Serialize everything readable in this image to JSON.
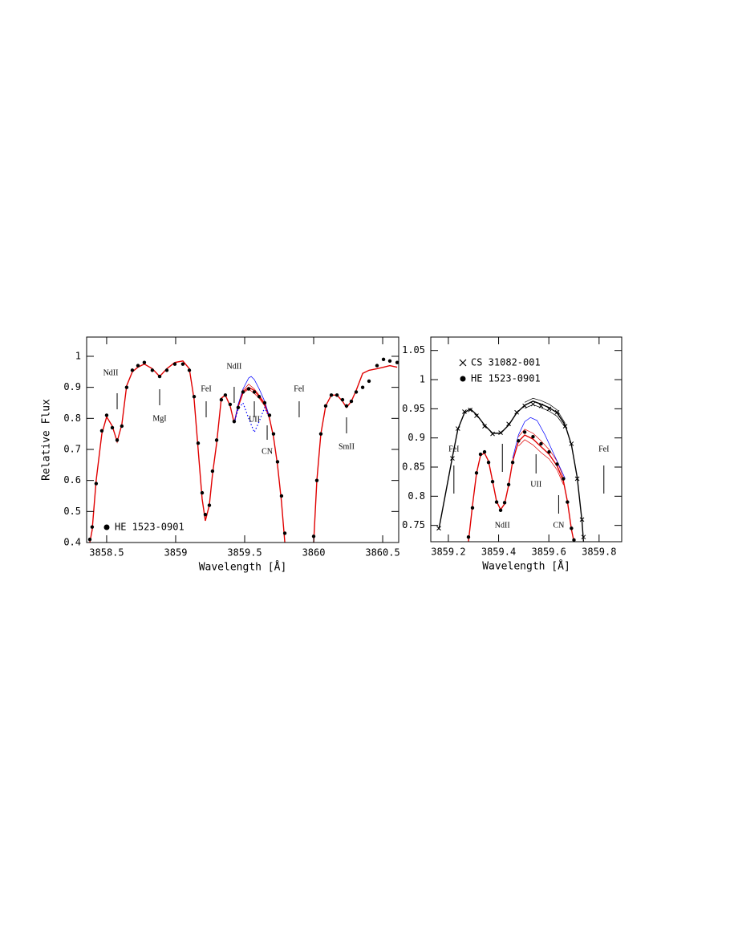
{
  "chart_data": [
    {
      "type": "spectrum",
      "xlabel": "Wavelength [Å]",
      "ylabel": "Relative Flux",
      "xlim": [
        3858.355,
        3860.616
      ],
      "ylim": [
        0.4,
        1.062
      ],
      "xticks": [
        3858.5,
        3859,
        3859.5,
        3860,
        3860.5
      ],
      "yticks": [
        0.4,
        0.5,
        0.6,
        0.7,
        0.8,
        0.9,
        1
      ],
      "legend": "lower left",
      "series": [
        {
          "color": "#e00000",
          "style": "line",
          "x": [
            3858.378,
            3858.395,
            3858.424,
            3858.465,
            3858.5,
            3858.541,
            3858.576,
            3858.61,
            3858.645,
            3858.686,
            3858.727,
            3858.773,
            3858.831,
            3858.884,
            3858.936,
            3858.994,
            3859.052,
            3859.099,
            3859.134,
            3859.163,
            3859.192,
            3859.215,
            3859.244,
            3859.267,
            3859.297,
            3859.331,
            3859.36,
            3859.395,
            3859.424,
            3859.453,
            3859.488,
            3859.529,
            3859.57,
            3859.605,
            3859.645,
            3859.68,
            3859.709,
            3859.738,
            3859.767,
            3859.791,
            3859.9,
            3860.0,
            3860.023,
            3860.052,
            3860.087,
            3860.128,
            3860.169,
            3860.209,
            3860.238,
            3860.273,
            3860.308,
            3860.355,
            3860.401,
            3860.459,
            3860.506,
            3860.552,
            3860.605
          ],
          "values": [
            0.4,
            0.44,
            0.6,
            0.75,
            0.805,
            0.775,
            0.725,
            0.78,
            0.905,
            0.95,
            0.965,
            0.975,
            0.96,
            0.935,
            0.96,
            0.98,
            0.985,
            0.96,
            0.86,
            0.7,
            0.54,
            0.47,
            0.52,
            0.62,
            0.72,
            0.865,
            0.875,
            0.84,
            0.785,
            0.84,
            0.885,
            0.9,
            0.89,
            0.87,
            0.845,
            0.8,
            0.74,
            0.65,
            0.53,
            0.4,
            null,
            0.4,
            0.6,
            0.75,
            0.84,
            0.875,
            0.875,
            0.855,
            0.835,
            0.855,
            0.89,
            0.945,
            0.955,
            0.96,
            0.965,
            0.97,
            0.965
          ]
        },
        {
          "color": "#e00000",
          "style": "thin",
          "x": [
            3859.453,
            3859.488,
            3859.529,
            3859.57,
            3859.605,
            3859.645,
            3859.68
          ],
          "values": [
            0.845,
            0.89,
            0.91,
            0.895,
            0.875,
            0.85,
            0.8
          ]
        },
        {
          "color": "#e00000",
          "style": "thin",
          "x": [
            3859.453,
            3859.488,
            3859.529,
            3859.57,
            3859.605,
            3859.645,
            3859.68
          ],
          "values": [
            0.835,
            0.88,
            0.895,
            0.88,
            0.865,
            0.84,
            0.8
          ]
        },
        {
          "color": "#0000ff",
          "style": "thin",
          "x": [
            3859.424,
            3859.453,
            3859.488,
            3859.529,
            3859.547,
            3859.57,
            3859.605,
            3859.645,
            3859.68
          ],
          "values": [
            0.785,
            0.845,
            0.895,
            0.93,
            0.935,
            0.925,
            0.895,
            0.855,
            0.805
          ]
        },
        {
          "color": "#0000ff",
          "style": "dotted",
          "x": [
            3859.424,
            3859.453,
            3859.488,
            3859.529,
            3859.57,
            3859.605,
            3859.645,
            3859.68
          ],
          "values": [
            0.785,
            0.83,
            0.85,
            0.8,
            0.755,
            0.79,
            0.835,
            0.8
          ]
        },
        {
          "name": "HE 1523-0901",
          "color": "#000000",
          "style": "scatter",
          "marker": "circle",
          "x": [
            3858.378,
            3858.395,
            3858.424,
            3858.465,
            3858.5,
            3858.541,
            3858.576,
            3858.61,
            3858.645,
            3858.686,
            3858.727,
            3858.773,
            3858.831,
            3858.884,
            3858.936,
            3858.994,
            3859.052,
            3859.099,
            3859.134,
            3859.163,
            3859.192,
            3859.215,
            3859.244,
            3859.267,
            3859.297,
            3859.331,
            3859.36,
            3859.395,
            3859.424,
            3859.453,
            3859.488,
            3859.529,
            3859.57,
            3859.605,
            3859.645,
            3859.68,
            3859.709,
            3859.738,
            3859.767,
            3859.791,
            3859.9,
            3860.0,
            3860.023,
            3860.052,
            3860.087,
            3860.128,
            3860.169,
            3860.209,
            3860.238,
            3860.273,
            3860.308,
            3860.355,
            3860.401,
            3860.459,
            3860.506,
            3860.552,
            3860.605
          ],
          "values": [
            0.41,
            0.45,
            0.59,
            0.76,
            0.81,
            0.77,
            0.73,
            0.775,
            0.9,
            0.955,
            0.97,
            0.98,
            0.955,
            0.935,
            0.955,
            0.975,
            0.975,
            0.955,
            0.87,
            0.72,
            0.56,
            0.49,
            0.52,
            0.63,
            0.73,
            0.86,
            0.875,
            0.845,
            0.79,
            0.835,
            0.885,
            0.895,
            0.885,
            0.87,
            0.85,
            0.81,
            0.75,
            0.66,
            0.55,
            0.43,
            null,
            0.42,
            0.6,
            0.75,
            0.84,
            0.875,
            0.875,
            0.86,
            0.84,
            0.855,
            0.885,
            0.9,
            0.92,
            0.97,
            0.99,
            0.985,
            0.98
          ]
        }
      ],
      "line_ids": [
        {
          "label": "NdII",
          "x": 3858.576
        },
        {
          "label": "MgI",
          "x": 3858.884
        },
        {
          "label": "FeI",
          "x": 3859.221
        },
        {
          "label": "NdII",
          "x": 3859.424
        },
        {
          "label": "UII",
          "x": 3859.57
        },
        {
          "label": "CN",
          "x": 3859.663
        },
        {
          "label": "FeI",
          "x": 3859.895
        },
        {
          "label": "SmII",
          "x": 3860.238
        }
      ]
    },
    {
      "type": "spectrum",
      "xlabel": "Wavelength [Å]",
      "xlim": [
        3859.13,
        3859.89
      ],
      "ylim": [
        0.722,
        1.073
      ],
      "xticks": [
        3859.2,
        3859.4,
        3859.6,
        3859.8
      ],
      "yticks": [
        0.75,
        0.8,
        0.85,
        0.9,
        0.95,
        1,
        1.05
      ],
      "legend": "upper left",
      "series": [
        {
          "color": "#000000",
          "style": "line",
          "x": [
            3859.162,
            3859.216,
            3859.238,
            3859.264,
            3859.287,
            3859.312,
            3859.344,
            3859.376,
            3859.408,
            3859.44,
            3859.472,
            3859.504,
            3859.537,
            3859.569,
            3859.601,
            3859.633,
            3859.665,
            3859.69,
            3859.713,
            3859.732,
            3859.738
          ],
          "values": [
            0.743,
            0.867,
            0.915,
            0.943,
            0.95,
            0.94,
            0.922,
            0.908,
            0.908,
            0.922,
            0.943,
            0.956,
            0.963,
            0.958,
            0.952,
            0.943,
            0.922,
            0.888,
            0.832,
            0.757,
            0.722
          ]
        },
        {
          "color": "#000000",
          "style": "thin",
          "x": [
            3859.504,
            3859.537,
            3859.569,
            3859.601,
            3859.633,
            3859.665
          ],
          "values": [
            0.961,
            0.968,
            0.964,
            0.958,
            0.948,
            0.925
          ]
        },
        {
          "color": "#000000",
          "style": "thin",
          "x": [
            3859.504,
            3859.537,
            3859.569,
            3859.601,
            3859.633,
            3859.665
          ],
          "values": [
            0.951,
            0.957,
            0.952,
            0.946,
            0.937,
            0.918
          ]
        },
        {
          "name": "CS 31082-001",
          "color": "#000000",
          "style": "scatter",
          "marker": "x",
          "x": [
            3859.162,
            3859.216,
            3859.238,
            3859.264,
            3859.287,
            3859.312,
            3859.344,
            3859.376,
            3859.408,
            3859.44,
            3859.472,
            3859.504,
            3859.537,
            3859.569,
            3859.601,
            3859.633,
            3859.665,
            3859.69,
            3859.713,
            3859.732,
            3859.738
          ],
          "values": [
            0.745,
            0.865,
            0.916,
            0.945,
            0.948,
            0.938,
            0.92,
            0.907,
            0.909,
            0.924,
            0.944,
            0.955,
            0.958,
            0.955,
            0.95,
            0.944,
            0.92,
            0.89,
            0.83,
            0.76,
            0.73
          ]
        },
        {
          "color": "#e00000",
          "style": "line",
          "x": [
            3859.28,
            3859.296,
            3859.312,
            3859.328,
            3859.344,
            3859.36,
            3859.376,
            3859.392,
            3859.408,
            3859.424,
            3859.44,
            3859.456,
            3859.479,
            3859.504,
            3859.537,
            3859.569,
            3859.601,
            3859.633,
            3859.658,
            3859.674,
            3859.69,
            3859.7
          ],
          "values": [
            0.722,
            0.784,
            0.839,
            0.87,
            0.874,
            0.86,
            0.826,
            0.791,
            0.777,
            0.787,
            0.819,
            0.86,
            0.894,
            0.905,
            0.898,
            0.885,
            0.872,
            0.852,
            0.826,
            0.791,
            0.743,
            0.722
          ]
        },
        {
          "color": "#e00000",
          "style": "thin",
          "x": [
            3859.479,
            3859.504,
            3859.537,
            3859.569,
            3859.601,
            3859.633,
            3859.658
          ],
          "values": [
            0.902,
            0.915,
            0.908,
            0.895,
            0.88,
            0.86,
            0.832
          ]
        },
        {
          "color": "#e00000",
          "style": "thin",
          "x": [
            3859.479,
            3859.504,
            3859.537,
            3859.569,
            3859.601,
            3859.633,
            3859.658
          ],
          "values": [
            0.886,
            0.897,
            0.888,
            0.875,
            0.864,
            0.845,
            0.82
          ]
        },
        {
          "color": "#0000ff",
          "style": "thin",
          "x": [
            3859.456,
            3859.479,
            3859.504,
            3859.527,
            3859.553,
            3859.585,
            3859.617,
            3859.649,
            3859.665
          ],
          "values": [
            0.865,
            0.905,
            0.928,
            0.935,
            0.93,
            0.905,
            0.875,
            0.845,
            0.83
          ]
        },
        {
          "name": "HE 1523-0901",
          "color": "#000000",
          "style": "scatter",
          "marker": "circle",
          "x": [
            3859.28,
            3859.296,
            3859.312,
            3859.328,
            3859.344,
            3859.36,
            3859.376,
            3859.392,
            3859.408,
            3859.424,
            3859.44,
            3859.456,
            3859.479,
            3859.504,
            3859.537,
            3859.569,
            3859.601,
            3859.633,
            3859.658,
            3859.674,
            3859.69,
            3859.7
          ],
          "values": [
            0.73,
            0.78,
            0.84,
            0.872,
            0.876,
            0.858,
            0.825,
            0.79,
            0.776,
            0.789,
            0.82,
            0.858,
            0.895,
            0.91,
            0.902,
            0.89,
            0.876,
            0.855,
            0.83,
            0.79,
            0.745,
            0.725
          ]
        }
      ],
      "line_ids": [
        {
          "label": "FeI",
          "x": 3859.222
        },
        {
          "label": "NdII",
          "x": 3859.415
        },
        {
          "label": "UII",
          "x": 3859.549
        },
        {
          "label": "CN",
          "x": 3859.639
        },
        {
          "label": "FeI",
          "x": 3859.819
        }
      ]
    }
  ]
}
